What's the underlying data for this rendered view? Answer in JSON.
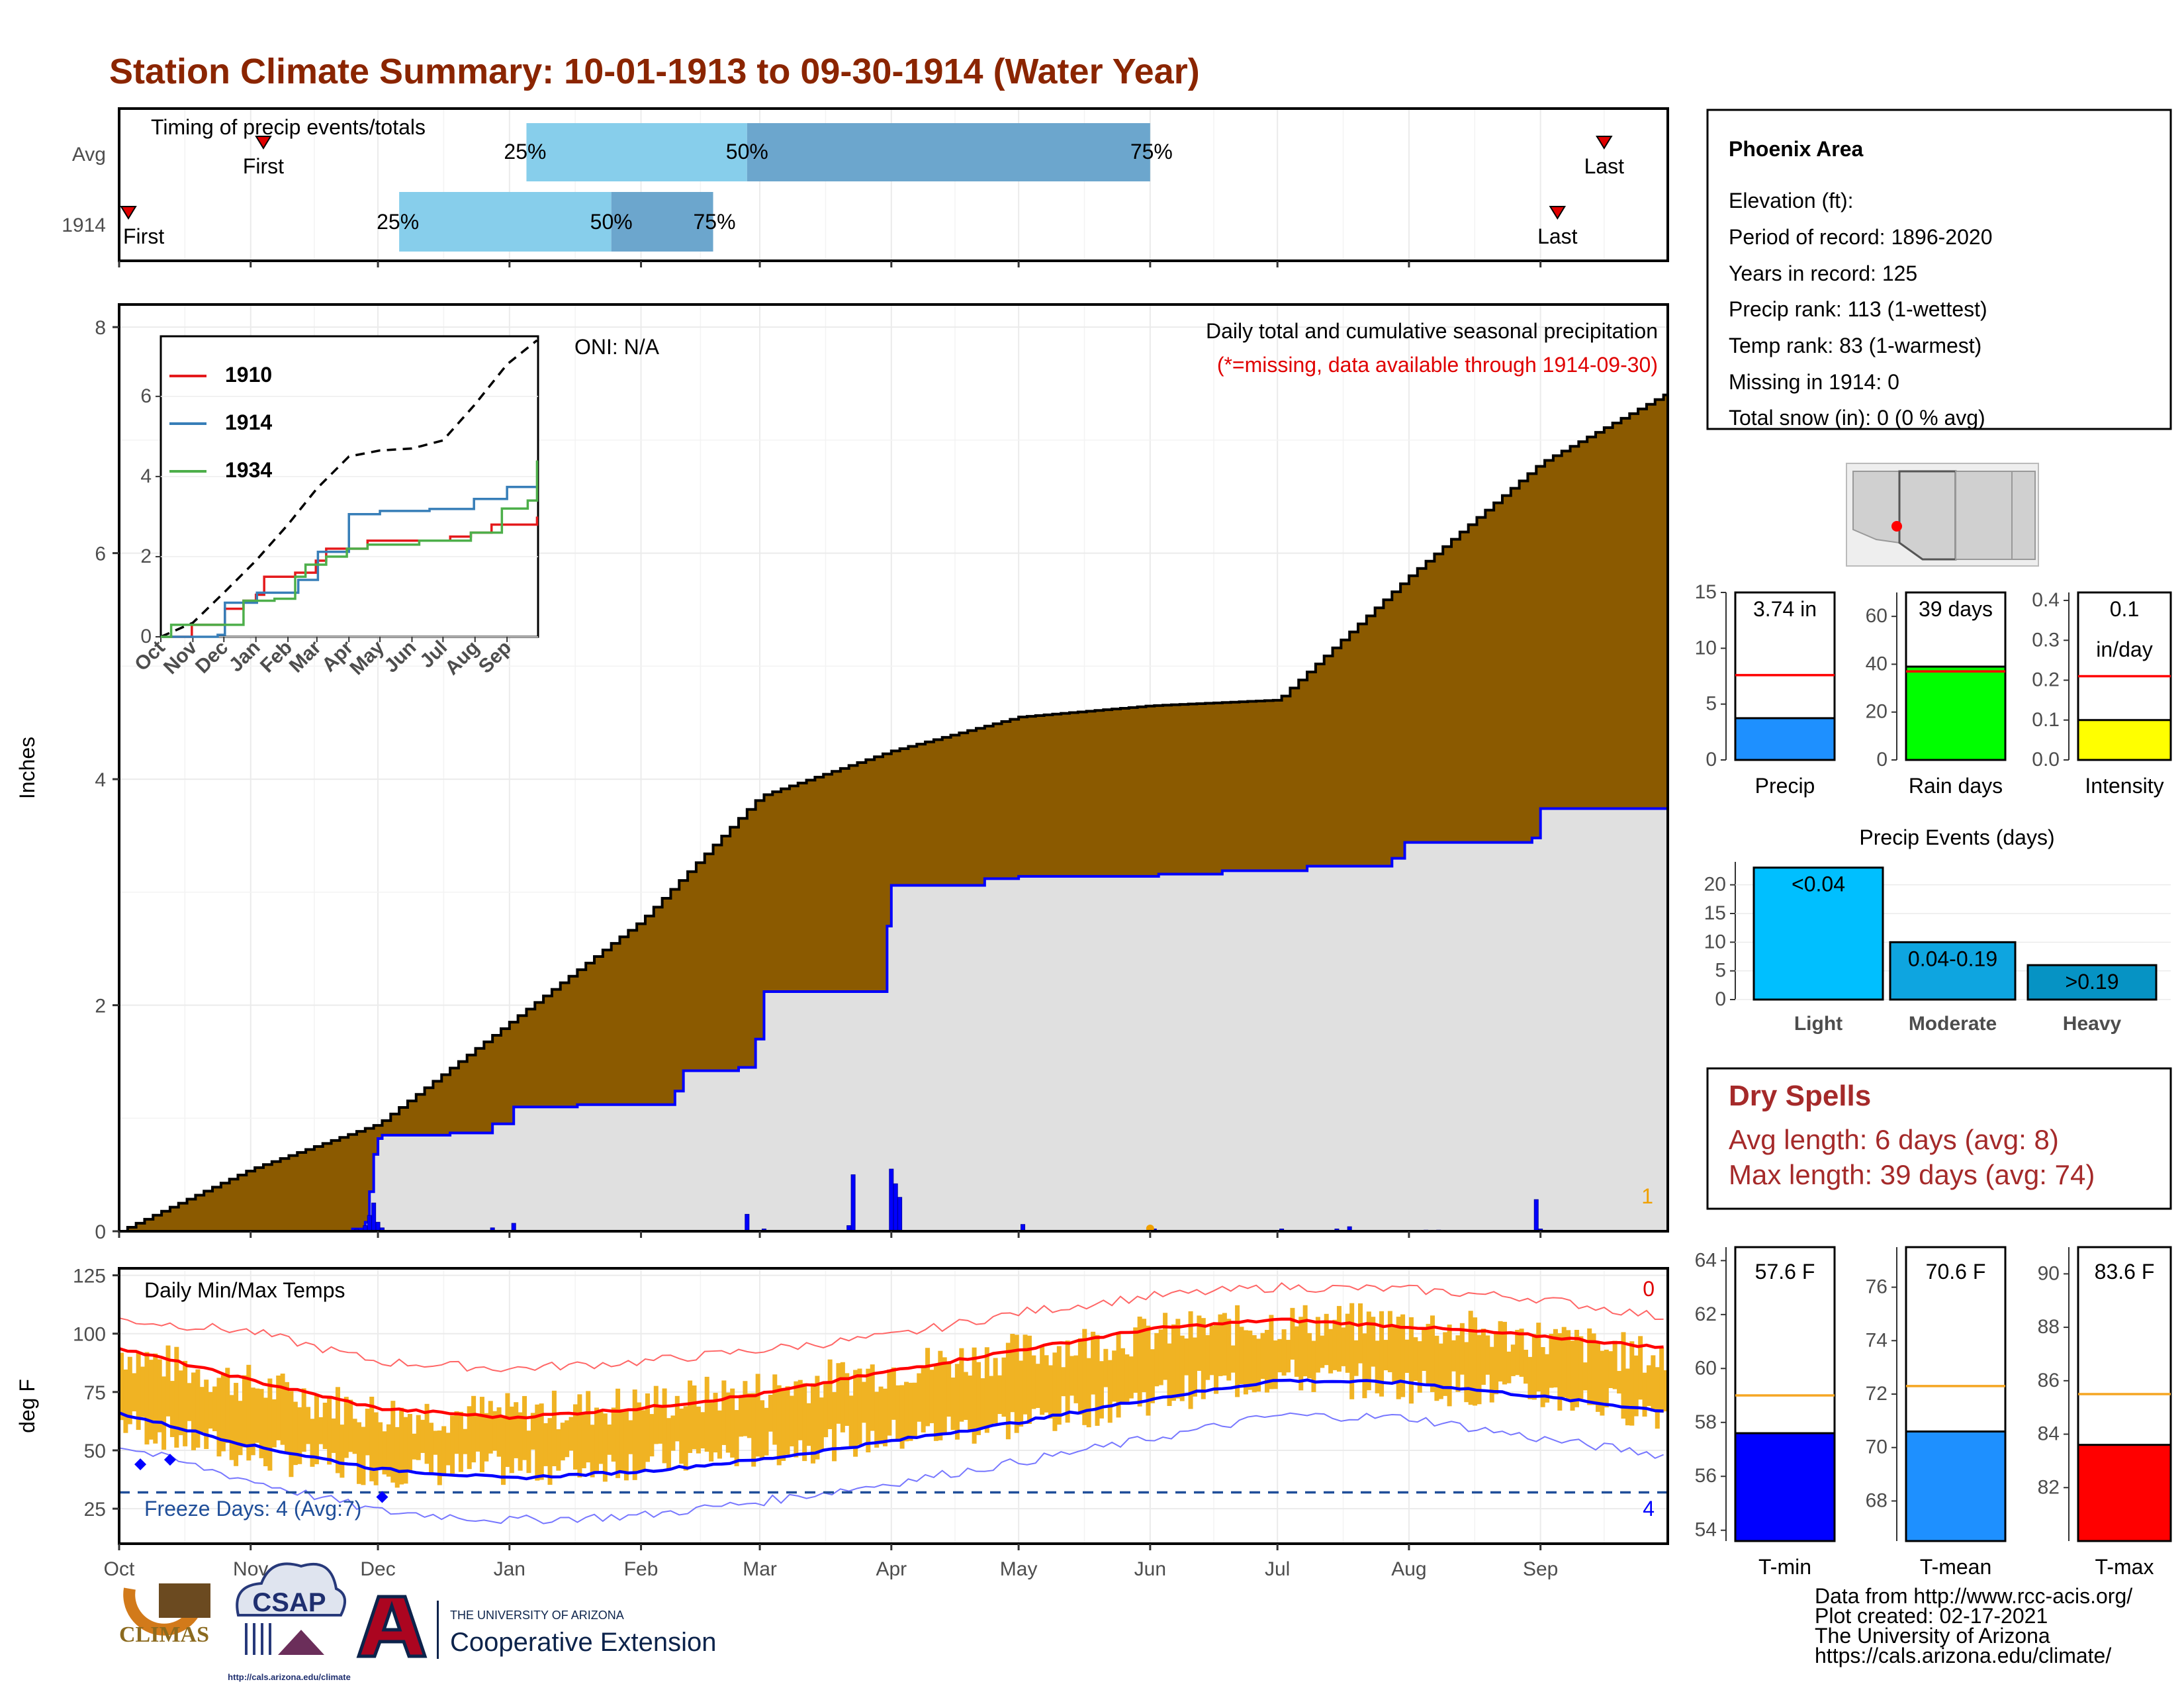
{
  "title": "Station Climate Summary: 10-01-1913 to 09-30-1914 (Water Year)",
  "months": [
    "Oct",
    "Nov",
    "Dec",
    "Jan",
    "Feb",
    "Mar",
    "Apr",
    "May",
    "Jun",
    "Jul",
    "Aug",
    "Sep"
  ],
  "timing": {
    "title": "Timing of precip events/totals",
    "rows": [
      "Avg",
      "1914"
    ],
    "avg": {
      "first_label": "First",
      "last_label": "Last",
      "q25": "25%",
      "q50": "50%",
      "q75": "75%"
    },
    "year": {
      "first_label": "First",
      "last_label": "Last",
      "q25": "25%",
      "q50": "50%",
      "q75": "75%"
    }
  },
  "precip": {
    "ylabel": "Inches",
    "annotation": "Daily total and cumulative seasonal precipitation",
    "missing_note": "(*=missing, data available through 1914-09-30)",
    "oni": "ONI: N/A",
    "corner_count": "1",
    "yticks": [
      "0",
      "2",
      "4",
      "6",
      "8"
    ]
  },
  "inset": {
    "legend": [
      {
        "name": "1910",
        "color": "#e41a1c"
      },
      {
        "name": "1914",
        "color": "#377eb8"
      },
      {
        "name": "1934",
        "color": "#4daf4a"
      }
    ],
    "yticks": [
      "0",
      "2",
      "4",
      "6"
    ],
    "xticks": [
      "Oct",
      "Nov",
      "Dec",
      "Jan",
      "Feb",
      "Mar",
      "Apr",
      "May",
      "Jun",
      "Jul",
      "Aug",
      "Sep"
    ]
  },
  "temps": {
    "ylabel": "deg F",
    "title": "Daily Min/Max Temps",
    "freeze": "Freeze Days: 4 (Avg:7)",
    "top_count": "0",
    "bottom_count": "4",
    "yticks": [
      "25",
      "50",
      "75",
      "100",
      "125"
    ]
  },
  "station": {
    "name": "Phoenix Area",
    "elevation": "Elevation (ft):",
    "period": "Period of record: 1896-2020",
    "years": "Years in record: 125",
    "precip_rank": "Precip rank: 113 (1-wettest)",
    "temp_rank": "Temp rank: 83 (1-warmest)",
    "missing": "Missing in 1914: 0",
    "snow": "Total snow (in): 0 (0 % avg)"
  },
  "small_bars": {
    "precip": {
      "label": "Precip",
      "value_text": "3.74 in",
      "value": 3.74,
      "avg": 7.6,
      "yticks": [
        "0",
        "5",
        "10",
        "15"
      ],
      "ymax": 15,
      "color": "#1e90ff"
    },
    "rain_days": {
      "label": "Rain days",
      "value_text": "39 days",
      "value": 39,
      "avg": 37,
      "yticks": [
        "0",
        "20",
        "40",
        "60"
      ],
      "ymax": 70,
      "color": "#00ff00"
    },
    "intensity": {
      "label": "Intensity",
      "value_text": "0.1",
      "value_text2": "in/day",
      "value": 0.1,
      "avg": 0.21,
      "yticks": [
        "0.0",
        "0.1",
        "0.2",
        "0.3",
        "0.4"
      ],
      "ymax": 0.42,
      "color": "#ffff00"
    }
  },
  "events": {
    "title": "Precip Events (days)",
    "yticks": [
      "0",
      "5",
      "10",
      "15",
      "20"
    ],
    "bars": [
      {
        "cat": "Light",
        "label": "<0.04",
        "value": 23,
        "color": "#00bfff"
      },
      {
        "cat": "Moderate",
        "label": "0.04-0.19",
        "value": 10,
        "color": "#0ea5e0"
      },
      {
        "cat": "Heavy",
        "label": ">0.19",
        "value": 6,
        "color": "#0693c4"
      }
    ]
  },
  "dry_spells": {
    "title": "Dry Spells",
    "avg": "Avg length: 6 days (avg: 8)",
    "max": "Max length: 39 days (avg: 74)"
  },
  "temp_bars": {
    "tmin": {
      "label": "T-min",
      "value_text": "57.6 F",
      "value": 57.6,
      "avg": 59.0,
      "ymin": 53.6,
      "ymax": 64.5,
      "yticks": [
        54,
        56,
        58,
        60,
        62,
        64
      ],
      "color": "#0000ff"
    },
    "tmean": {
      "label": "T-mean",
      "value_text": "70.6 F",
      "value": 70.6,
      "avg": 72.3,
      "ymin": 66.5,
      "ymax": 77.5,
      "yticks": [
        68,
        70,
        72,
        74,
        76
      ],
      "color": "#1e90ff"
    },
    "tmax": {
      "label": "T-max",
      "value_text": "83.6 F",
      "value": 83.6,
      "avg": 85.5,
      "ymin": 80.0,
      "ymax": 91.0,
      "yticks": [
        82,
        84,
        86,
        88,
        90
      ],
      "color": "#ff0000"
    }
  },
  "footer": {
    "line1": "Data from http://www.rcc-acis.org/",
    "line2": "Plot created: 02-17-2021",
    "line3": "The University of Arizona",
    "line4": "https://cals.arizona.edu/climate/",
    "logo1": "CLIMAS",
    "logo2": "CSAP",
    "logo2_url": "http://cals.arizona.edu/climate",
    "ua_small": "THE UNIVERSITY OF ARIZONA",
    "ua_big": "Cooperative Extension"
  },
  "chart_data": [
    {
      "type": "bar",
      "title": "Timing of precip events/totals",
      "categories": [
        "Avg",
        "1914"
      ],
      "series": [
        {
          "name": "First",
          "values": [
            "Nov 4",
            "Oct 1"
          ]
        },
        {
          "name": "25%",
          "values": [
            "Jan 5",
            "Dec 6"
          ]
        },
        {
          "name": "50%",
          "values": [
            "Feb 26",
            "Jan 25"
          ]
        },
        {
          "name": "75%",
          "values": [
            "Jun 1",
            "Feb 18"
          ]
        },
        {
          "name": "Last",
          "values": [
            "Sep 16",
            "Sep 5"
          ]
        }
      ]
    },
    {
      "type": "area",
      "title": "Daily total and cumulative seasonal precipitation",
      "ylabel": "Inches",
      "ylim": [
        0,
        8.2
      ],
      "x": [
        "Oct 1",
        "Nov 1",
        "Dec 1",
        "Jan 1",
        "Feb 1",
        "Mar 1",
        "Apr 1",
        "May 1",
        "Jun 1",
        "Jul 1",
        "Aug 1",
        "Sep 1",
        "Sep 30"
      ],
      "series": [
        {
          "name": "Average cumulative",
          "values": [
            0.0,
            0.55,
            0.95,
            1.85,
            2.75,
            3.85,
            4.25,
            4.55,
            4.65,
            4.7,
            5.8,
            6.8,
            7.4
          ]
        },
        {
          "name": "1914 cumulative",
          "values": [
            0.0,
            0.0,
            0.85,
            1.1,
            1.42,
            2.12,
            3.06,
            3.14,
            3.18,
            3.25,
            3.44,
            3.48,
            3.74
          ]
        }
      ],
      "daily_bars": [
        {
          "date": "Nov 26",
          "value": 0.02
        },
        {
          "date": "Nov 28",
          "value": 0.05
        },
        {
          "date": "Nov 29",
          "value": 0.14
        },
        {
          "date": "Nov 30",
          "value": 0.25
        },
        {
          "date": "Dec 1",
          "value": 0.08
        },
        {
          "date": "Dec 2",
          "value": 0.03
        },
        {
          "date": "Dec 15",
          "value": 0.02
        },
        {
          "date": "Dec 28",
          "value": 0.03
        },
        {
          "date": "Jan 2",
          "value": 0.07
        },
        {
          "date": "Jan 16",
          "value": 0.02
        },
        {
          "date": "Feb 10",
          "value": 0.01
        },
        {
          "date": "Feb 26",
          "value": 0.02
        },
        {
          "date": "Mar 2",
          "value": 0.05
        },
        {
          "date": "Mar 3",
          "value": 0.07
        },
        {
          "date": "Mar 5",
          "value": 0.01
        },
        {
          "date": "Mar 11",
          "value": 0.17
        },
        {
          "date": "Mar 13",
          "value": 0.01
        },
        {
          "date": "Mar 14",
          "value": 0.02
        },
        {
          "date": "Apr 1",
          "value": 0.01
        },
        {
          "date": "Apr 2",
          "value": 0.02
        },
        {
          "date": "Apr 3",
          "value": 0.02
        },
        {
          "date": "Apr 4",
          "value": 0.03
        },
        {
          "date": "Apr 5",
          "value": 0.01
        },
        {
          "date": "Apr 6",
          "value": 0.02
        },
        {
          "date": "Apr 7",
          "value": 0.03
        },
        {
          "date": "Apr 8",
          "value": 0.02
        },
        {
          "date": "Apr 9",
          "value": 0.02
        },
        {
          "date": "Apr 10",
          "value": 0.02
        },
        {
          "date": "Apr 11",
          "value": 0.01
        },
        {
          "date": "Apr 12",
          "value": 0.01
        },
        {
          "date": "Apr 13",
          "value": 0.01
        },
        {
          "date": "Apr 14",
          "value": 0.01
        },
        {
          "date": "Apr 15",
          "value": 0.01
        },
        {
          "date": "Apr 16",
          "value": 0.01
        },
        {
          "date": "Apr 17",
          "value": 0.01
        },
        {
          "date": "Apr 18",
          "value": 0.01
        },
        {
          "date": "Apr 19",
          "value": 0.01
        },
        {
          "date": "Apr 20",
          "value": 0.01
        },
        {
          "date": "Apr 21",
          "value": 0.01
        },
        {
          "date": "Apr 22",
          "value": 0.01
        },
        {
          "date": "Apr 23",
          "value": 0.01
        },
        {
          "date": "Apr 24",
          "value": 0.01
        },
        {
          "date": "Apr 25",
          "value": 0.01
        },
        {
          "date": "Apr 26",
          "value": 0.01
        },
        {
          "date": "Apr 27",
          "value": 0.01
        },
        {
          "date": "Apr 28",
          "value": 0.01
        },
        {
          "date": "Apr 29",
          "value": 0.01
        },
        {
          "date": "Apr 30",
          "value": 0.01
        },
        {
          "date": "May 1",
          "value": 0.01
        },
        {
          "date": "May 2",
          "value": 0.01
        },
        {
          "date": "May 3",
          "value": 0.01
        },
        {
          "date": "May 4",
          "value": 0.01
        },
        {
          "date": "May 5",
          "value": 0.01
        },
        {
          "date": "May 6",
          "value": 0.01
        },
        {
          "date": "May 7",
          "value": 0.01
        },
        {
          "date": "May 8",
          "value": 0.01
        },
        {
          "date": "May 9",
          "value": 0.01
        },
        {
          "date": "May 10",
          "value": 0.01
        },
        {
          "date": "May 11",
          "value": 0.01
        },
        {
          "date": "May 12",
          "value": 0.01
        },
        {
          "date": "May 13",
          "value": 0.01
        },
        {
          "date": "May 14",
          "value": 0.01
        },
        {
          "date": "May 15",
          "value": 0.01
        },
        {
          "date": "May 16",
          "value": 0.01
        },
        {
          "date": "May 17",
          "value": 0.01
        },
        {
          "date": "May 18",
          "value": 0.01
        },
        {
          "date": "May 19",
          "value": 0.01
        },
        {
          "date": "May 20",
          "value": 0.01
        },
        {
          "date": "May 21",
          "value": 0.01
        },
        {
          "date": "May 22",
          "value": 0.01
        },
        {
          "date": "May 23",
          "value": 0.01
        },
        {
          "date": "May 24",
          "value": 0.01
        },
        {
          "date": "May 25",
          "value": 0.01
        },
        {
          "date": "May 26",
          "value": 0.01
        },
        {
          "date": "May 27",
          "value": 0.01
        },
        {
          "date": "May 28",
          "value": 0.01
        },
        {
          "date": "May 29",
          "value": 0.01
        },
        {
          "date": "May 30",
          "value": 0.01
        },
        {
          "date": "May 31",
          "value": 0.01
        },
        {
          "date": "Jun 1",
          "value": 0.01
        },
        {
          "date": "Jun 2",
          "value": 0.01
        },
        {
          "date": "Jun 3",
          "value": 0.01
        },
        {
          "date": "Jun 4",
          "value": 0.01
        },
        {
          "date": "Jun 5",
          "value": 0.01
        },
        {
          "date": "Jun 6",
          "value": 0.01
        },
        {
          "date": "Jun 7",
          "value": 0.01
        },
        {
          "date": "Jun 8",
          "value": 0.01
        },
        {
          "date": "Jun 9",
          "value": 0.01
        },
        {
          "date": "Jun 10",
          "value": 0.01
        }
      ]
    },
    {
      "type": "line",
      "title": "Daily Min/Max Temps",
      "ylabel": "deg F",
      "ylim": [
        10,
        128
      ],
      "x": [
        "Oct 1",
        "Nov 1",
        "Dec 1",
        "Jan 1",
        "Feb 1",
        "Mar 1",
        "Apr 1",
        "May 1",
        "Jun 1",
        "Jul 1",
        "Aug 1",
        "Sep 1",
        "Sep 30"
      ],
      "series": [
        {
          "name": "Record high",
          "values": [
            106,
            101,
            88,
            85,
            88,
            93,
            99,
            109,
            116,
            120,
            119,
            115,
            107
          ]
        },
        {
          "name": "Average max",
          "values": [
            94,
            80,
            68,
            64,
            68,
            74,
            84,
            93,
            102,
            106,
            103,
            99,
            94
          ]
        },
        {
          "name": "Average min",
          "values": [
            66,
            52,
            42,
            38,
            41,
            46,
            54,
            62,
            72,
            80,
            79,
            73,
            67
          ]
        },
        {
          "name": "Record low",
          "values": [
            52,
            37,
            24,
            20,
            22,
            28,
            36,
            45,
            55,
            65,
            64,
            55,
            48
          ]
        },
        {
          "name": "Daily max 1914",
          "values": [
            92,
            78,
            66,
            66,
            70,
            76,
            85,
            92,
            100,
            105,
            104,
            98,
            89
          ]
        },
        {
          "name": "Daily min 1914",
          "values": [
            62,
            48,
            42,
            42,
            45,
            50,
            56,
            62,
            73,
            82,
            78,
            74,
            66
          ]
        }
      ],
      "freeze_threshold": 32
    },
    {
      "type": "bar",
      "categories": [
        "Light",
        "Moderate",
        "Heavy"
      ],
      "values": [
        23,
        10,
        6
      ],
      "title": "Precip Events (days)"
    }
  ]
}
